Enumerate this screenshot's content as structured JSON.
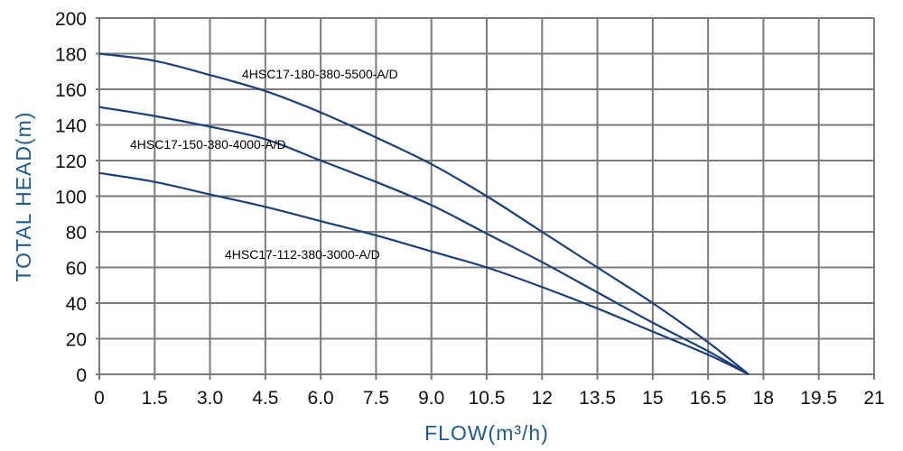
{
  "chart_data": {
    "type": "line",
    "title": "",
    "xlabel": "FLOW(m³/h)",
    "ylabel": "TOTAL HEAD(m)",
    "xlim": [
      0,
      21
    ],
    "ylim": [
      0,
      200
    ],
    "grid": true,
    "x_ticks": [
      "0",
      "1.5",
      "3.0",
      "4.5",
      "6.0",
      "7.5",
      "9.0",
      "10.5",
      "12",
      "13.5",
      "15",
      "16.5",
      "18",
      "19.5",
      "21"
    ],
    "y_ticks": [
      "0",
      "20",
      "40",
      "60",
      "80",
      "100",
      "120",
      "140",
      "160",
      "180",
      "200"
    ],
    "colors": {
      "curve": "#1b3f78",
      "grid": "#7a7a7a",
      "axis_title": "#1f5a8c"
    },
    "series": [
      {
        "name": "4HSC17-180-380-5500-A/D",
        "x": [
          0,
          1.5,
          3,
          4.5,
          6,
          7.5,
          9,
          10.5,
          12,
          13.5,
          15,
          16.5,
          17.6
        ],
        "y": [
          180,
          176,
          168,
          159,
          147,
          133,
          118,
          100,
          80,
          60,
          40,
          18,
          0
        ]
      },
      {
        "name": "4HSC17-150-380-4000-A/D",
        "x": [
          0,
          1.5,
          3,
          4.5,
          6,
          7.5,
          9,
          10.5,
          12,
          13.5,
          15,
          16.5,
          17.6
        ],
        "y": [
          150,
          145,
          139,
          132,
          120,
          108,
          95,
          79,
          63,
          46,
          29,
          13,
          0
        ]
      },
      {
        "name": "4HSC17-112-380-3000-A/D",
        "x": [
          0,
          1.5,
          3,
          4.5,
          6,
          7.5,
          9,
          10.5,
          12,
          13.5,
          15,
          16.5,
          17.6
        ],
        "y": [
          113,
          108,
          101,
          94,
          86,
          78,
          69,
          60,
          49,
          37,
          24,
          11,
          0
        ]
      }
    ]
  }
}
